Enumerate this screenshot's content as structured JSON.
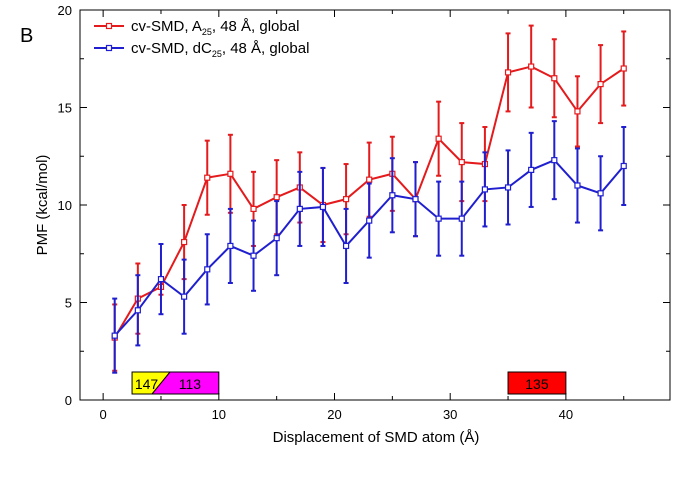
{
  "panel_label": "B",
  "chart_data": {
    "type": "line",
    "xlabel": "Displacement of SMD atom (Å)",
    "ylabel": "PMF (kcal/mol)",
    "xlim": [
      -2,
      49
    ],
    "ylim": [
      0,
      20
    ],
    "x_ticks": [
      0,
      10,
      20,
      30,
      40
    ],
    "y_ticks": [
      0,
      5,
      10,
      15,
      20
    ],
    "grid": false,
    "legend_position": "top-left",
    "x": [
      1,
      3,
      5,
      7,
      9,
      11,
      13,
      15,
      17,
      19,
      21,
      23,
      25,
      27,
      29,
      31,
      33,
      35,
      37,
      39,
      41,
      43,
      45
    ],
    "series": [
      {
        "name": "cv-SMD, A25, 48 Å, global",
        "legend": {
          "pre": "cv-SMD, A",
          "sub": "25",
          "post": ", 48 Å, global"
        },
        "color": "#e41a1c",
        "values": [
          3.2,
          5.2,
          5.8,
          8.1,
          11.4,
          11.6,
          9.8,
          10.4,
          10.9,
          10.0,
          10.3,
          11.3,
          11.6,
          10.3,
          13.4,
          12.2,
          12.1,
          16.8,
          17.1,
          16.5,
          14.8,
          16.2,
          17.0
        ],
        "err": [
          1.7,
          1.8,
          0.4,
          1.9,
          1.9,
          2.0,
          1.9,
          1.9,
          1.8,
          1.9,
          1.8,
          1.9,
          1.9,
          1.9,
          1.9,
          2.0,
          1.9,
          2.0,
          2.1,
          2.0,
          1.8,
          2.0,
          1.9
        ]
      },
      {
        "name": "cv-SMD, dC25, 48 Å, global",
        "legend": {
          "pre": "cv-SMD, dC",
          "sub": "25",
          "post": ", 48 Å, global"
        },
        "color": "#1f1fcf",
        "values": [
          3.3,
          4.6,
          6.2,
          5.3,
          6.7,
          7.9,
          7.4,
          8.3,
          9.8,
          9.9,
          7.9,
          9.2,
          10.5,
          10.3,
          9.3,
          9.3,
          10.8,
          10.9,
          11.8,
          12.3,
          11.0,
          10.6,
          12.0
        ],
        "err": [
          1.9,
          1.8,
          1.8,
          1.9,
          1.8,
          1.9,
          1.8,
          1.9,
          1.9,
          2.0,
          1.9,
          1.9,
          1.9,
          1.9,
          1.9,
          1.9,
          1.9,
          1.9,
          1.9,
          2.0,
          1.9,
          1.9,
          2.0
        ]
      }
    ],
    "annotations": [
      {
        "label": "147",
        "x_start": 2.5,
        "x_end": 5.0,
        "color": "#ffff00"
      },
      {
        "label": "113",
        "x_start": 5.0,
        "x_end": 10.0,
        "color": "#ff00ff"
      },
      {
        "label": "135",
        "x_start": 35.0,
        "x_end": 40.0,
        "color": "#ff0000"
      }
    ]
  }
}
